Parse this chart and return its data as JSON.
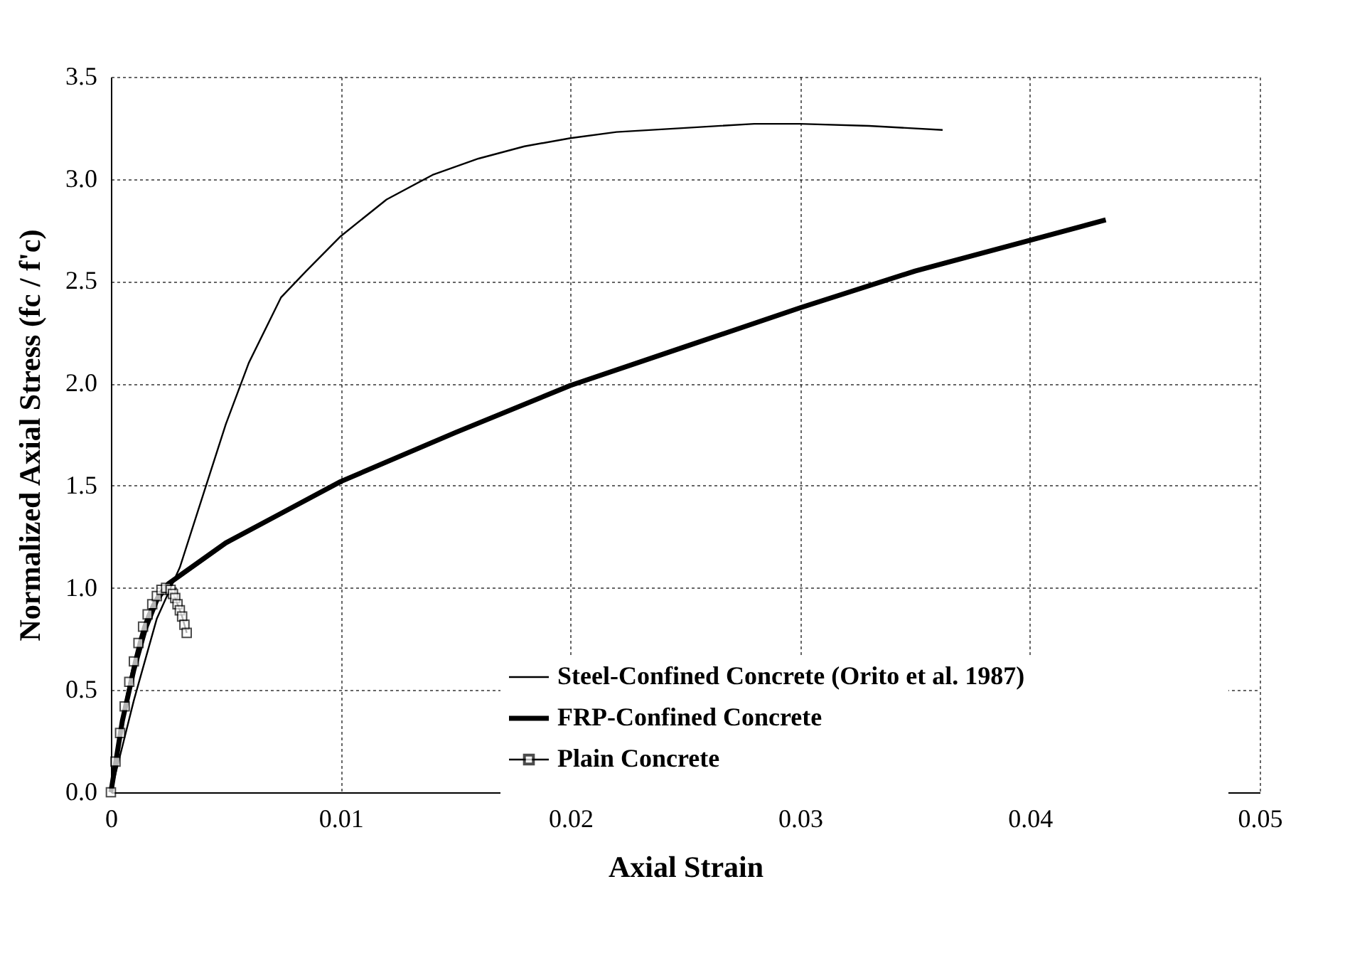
{
  "chart_data": {
    "type": "line",
    "xlabel": "Axial Strain",
    "ylabel": "Normalized Axial Stress (fc / f'c)",
    "xlim": [
      0,
      0.05
    ],
    "xticks": [
      0,
      0.01,
      0.02,
      0.03,
      0.04,
      0.05
    ],
    "ylim": [
      0,
      3.5
    ],
    "yticks": [
      {
        "value": 0,
        "label": "0.0"
      },
      {
        "value": 0.5,
        "label": "0.5"
      },
      {
        "value": 1,
        "label": "1.0"
      },
      {
        "value": 1.5,
        "label": "1.5"
      },
      {
        "value": 2,
        "label": "2.0"
      },
      {
        "value": 2.5,
        "label": "2.5"
      },
      {
        "value": 3,
        "label": "3.0"
      },
      {
        "value": 3.5,
        "label": "3.5"
      }
    ],
    "grid": true,
    "legend": "bottom right",
    "series": [
      {
        "name": "Steel-Confined Concrete (Orito et al. 1987)",
        "color": "#000000",
        "line_style": "solid",
        "marker": "none",
        "x": [
          0,
          0.001,
          0.002,
          0.003,
          0.004,
          0.005,
          0.006,
          0.0074,
          0.0085,
          0.01,
          0.012,
          0.014,
          0.016,
          0.018,
          0.02,
          0.022,
          0.025,
          0.028,
          0.03,
          0.033,
          0.0362
        ],
        "values": [
          0,
          0.45,
          0.85,
          1.1,
          1.45,
          1.8,
          2.1,
          2.42,
          2.55,
          2.72,
          2.9,
          3.02,
          3.1,
          3.16,
          3.2,
          3.23,
          3.25,
          3.27,
          3.27,
          3.26,
          3.24
        ]
      },
      {
        "name": "FRP-Confined Concrete",
        "color": "#000000",
        "line_style": "solid",
        "marker": "none",
        "x": [
          0,
          0.0005,
          0.001,
          0.0015,
          0.002,
          0.0025,
          0.003,
          0.005,
          0.0075,
          0.01,
          0.015,
          0.02,
          0.025,
          0.03,
          0.035,
          0.04,
          0.0433
        ],
        "values": [
          0,
          0.35,
          0.6,
          0.8,
          0.94,
          1.02,
          1.06,
          1.22,
          1.37,
          1.52,
          1.76,
          1.99,
          2.18,
          2.37,
          2.55,
          2.7,
          2.8
        ]
      },
      {
        "name": "Plain Concrete",
        "color": "#000000",
        "line_style": "solid",
        "marker": "square",
        "x": [
          0,
          0.0002,
          0.0004,
          0.0006,
          0.0008,
          0.001,
          0.0012,
          0.0014,
          0.0016,
          0.0018,
          0.002,
          0.0022,
          0.0024,
          0.0026,
          0.0027,
          0.0028,
          0.0029,
          0.003,
          0.0031,
          0.0032,
          0.0033
        ],
        "values": [
          0,
          0.15,
          0.29,
          0.42,
          0.54,
          0.64,
          0.73,
          0.81,
          0.87,
          0.92,
          0.96,
          0.99,
          1.0,
          0.99,
          0.97,
          0.95,
          0.92,
          0.89,
          0.86,
          0.82,
          0.78
        ]
      }
    ]
  }
}
